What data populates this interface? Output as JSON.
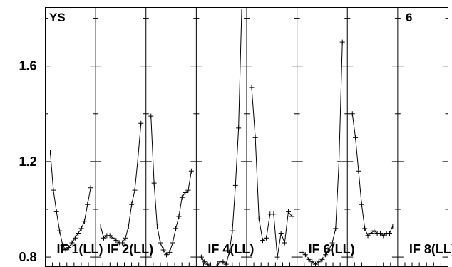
{
  "chart_data": {
    "type": "line",
    "title_left": "YS",
    "title_right": "6",
    "yticks": [
      0.8,
      1.2,
      1.6
    ],
    "ylim": [
      0.76,
      1.845
    ],
    "ytick_labels": [
      "0.8",
      "1.2",
      "1.6"
    ],
    "panels": [
      {
        "label": "IF 1(LL)",
        "values": [
          1.24,
          1.08,
          0.99,
          0.91,
          0.85,
          0.83,
          0.84,
          0.86,
          0.88,
          0.9,
          0.92,
          0.95,
          1.02,
          1.09
        ]
      },
      {
        "label": "IF 2(LL)",
        "values": [
          0.93,
          0.88,
          0.89,
          0.89,
          0.88,
          0.87,
          0.86,
          0.86,
          0.88,
          0.93,
          1.02,
          1.08,
          1.21,
          1.36
        ]
      },
      {
        "label": "",
        "values": [
          1.39,
          1.11,
          0.93,
          0.86,
          0.83,
          0.81,
          0.82,
          0.86,
          0.92,
          0.97,
          1.05,
          1.07,
          1.08,
          1.16
        ]
      },
      {
        "label": "IF 4(LL)",
        "values": [
          0.8,
          0.78,
          0.77,
          0.76,
          0.75,
          0.76,
          0.78,
          0.78,
          0.77,
          0.82,
          0.91,
          1.1,
          1.34,
          1.83
        ]
      },
      {
        "label": "",
        "values": [
          1.51,
          1.3,
          0.96,
          0.87,
          0.88,
          0.98,
          0.98,
          0.8,
          0.9,
          0.86,
          0.99,
          0.97
        ]
      },
      {
        "label": "IF 6(LL)",
        "values": [
          0.82,
          0.81,
          0.79,
          0.78,
          0.77,
          0.78,
          0.79,
          0.81,
          0.83,
          0.86,
          0.92,
          1.2,
          1.7
        ]
      },
      {
        "label": "",
        "values": [
          1.4,
          1.3,
          1.16,
          1.02,
          0.92,
          0.89,
          0.9,
          0.91,
          0.9,
          0.9,
          0.89,
          0.9,
          0.9,
          0.93
        ]
      },
      {
        "label": "IF 8(LL)",
        "values": []
      }
    ]
  }
}
